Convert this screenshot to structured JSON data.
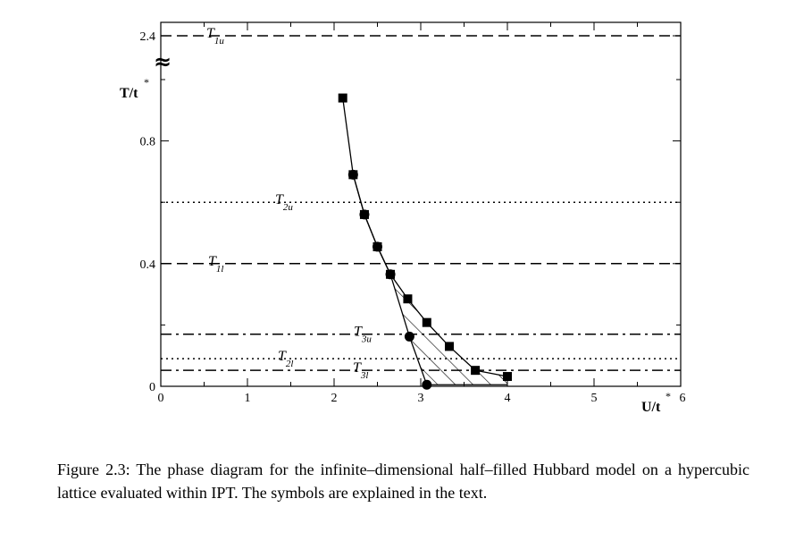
{
  "chart_data": {
    "type": "line",
    "xlabel": "U/t",
    "xlabel_sup": "*",
    "ylabel": "T/t",
    "ylabel_sup": "*",
    "xlim": [
      0,
      6
    ],
    "x_ticks": [
      "0",
      "1",
      "2",
      "3",
      "4",
      "5",
      "6"
    ],
    "y_ticks": [
      "0",
      "0.4",
      "0.8",
      "2.4"
    ],
    "y_axis_break": "≈",
    "horizontal_lines": [
      {
        "label_main": "T",
        "label_sub": "1u",
        "style": "dashed",
        "y": 2.4
      },
      {
        "label_main": "T",
        "label_sub": "2u",
        "style": "dotted",
        "y": 0.6
      },
      {
        "label_main": "T",
        "label_sub": "1l",
        "style": "dashed",
        "y": 0.4
      },
      {
        "label_main": "T",
        "label_sub": "3u",
        "style": "dashdot",
        "y": 0.17
      },
      {
        "label_main": "T",
        "label_sub": "2l",
        "style": "dotted",
        "y": 0.09
      },
      {
        "label_main": "T",
        "label_sub": "3l",
        "style": "dashdot",
        "y": 0.052
      }
    ],
    "squares_upper": [
      {
        "x": 2.1,
        "y": 0.94
      },
      {
        "x": 2.22,
        "y": 0.69
      },
      {
        "x": 2.35,
        "y": 0.56
      },
      {
        "x": 2.5,
        "y": 0.455
      },
      {
        "x": 2.65,
        "y": 0.365
      }
    ],
    "squares_lower": [
      {
        "x": 2.85,
        "y": 0.285
      },
      {
        "x": 3.07,
        "y": 0.208
      },
      {
        "x": 3.33,
        "y": 0.13
      },
      {
        "x": 3.63,
        "y": 0.052
      },
      {
        "x": 4.0,
        "y": 0.032
      }
    ],
    "circles": [
      {
        "x": 2.22,
        "y": 0.69
      },
      {
        "x": 2.35,
        "y": 0.56
      },
      {
        "x": 2.5,
        "y": 0.455
      },
      {
        "x": 2.65,
        "y": 0.365
      },
      {
        "x": 2.87,
        "y": 0.162
      },
      {
        "x": 3.07,
        "y": 0.005
      }
    ],
    "shaded_region": "hatched coexistence region between lower-circle boundary and lower-square boundary"
  },
  "caption": "Figure 2.3:  The phase diagram for the infinite–dimensional half–filled Hubbard model on a hypercubic lattice evaluated within IPT. The symbols are explained in the text."
}
